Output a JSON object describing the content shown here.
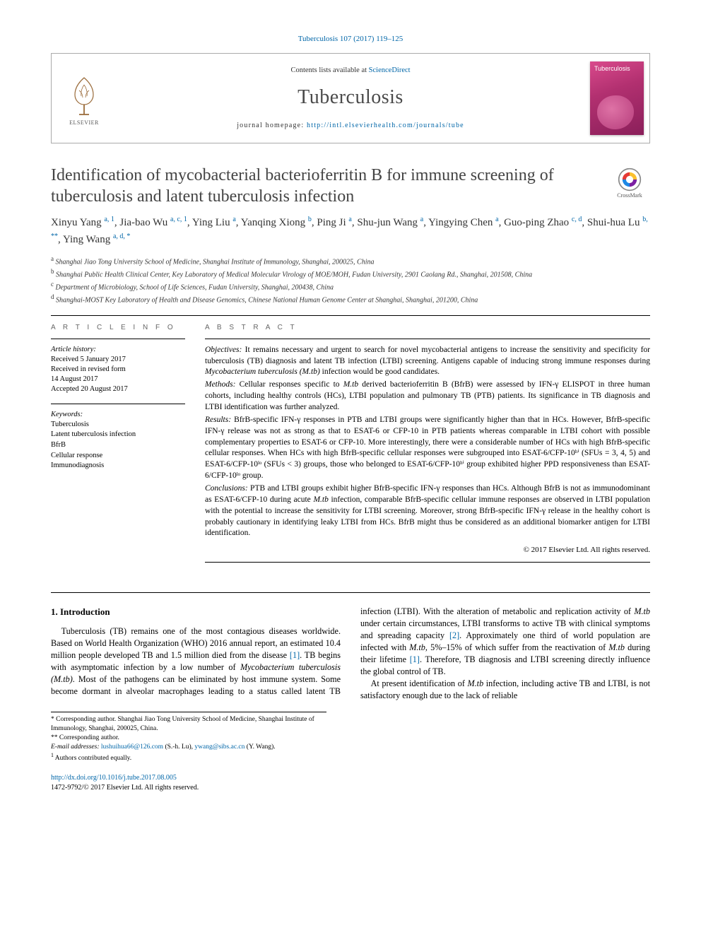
{
  "citation_line": "Tuberculosis 107 (2017) 119–125",
  "header": {
    "contents_prefix": "Contents lists available at ",
    "contents_link": "ScienceDirect",
    "journal": "Tuberculosis",
    "homepage_prefix": "journal homepage: ",
    "homepage_url": "http://intl.elsevierhealth.com/journals/tube",
    "publisher_label": "ELSEVIER",
    "cover_title": "Tuberculosis"
  },
  "crossmark_label": "CrossMark",
  "title": "Identification of mycobacterial bacterioferritin B for immune screening of tuberculosis and latent tuberculosis infection",
  "authors_html": "Xinyu Yang <sup>a, 1</sup>, Jia-bao Wu <sup>a, c, 1</sup>, Ying Liu <sup>a</sup>, Yanqing Xiong <sup>b</sup>, Ping Ji <sup>a</sup>, Shu-jun Wang <sup>a</sup>, Yingying Chen <sup>a</sup>, Guo-ping Zhao <sup>c, d</sup>, Shui-hua Lu <sup>b, **</sup>, Ying Wang <sup>a, d, *</sup>",
  "affiliations": [
    {
      "key": "a",
      "text": "Shanghai Jiao Tong University School of Medicine, Shanghai Institute of Immunology, Shanghai, 200025, China"
    },
    {
      "key": "b",
      "text": "Shanghai Public Health Clinical Center, Key Laboratory of Medical Molecular Virology of MOE/MOH, Fudan University, 2901 Caolang Rd., Shanghai, 201508, China"
    },
    {
      "key": "c",
      "text": "Department of Microbiology, School of Life Sciences, Fudan University, Shanghai, 200438, China"
    },
    {
      "key": "d",
      "text": "Shanghai-MOST Key Laboratory of Health and Disease Genomics, Chinese National Human Genome Center at Shanghai, Shanghai, 201200, China"
    }
  ],
  "info_head": "A R T I C L E    I N F O",
  "abstract_head": "A B S T R A C T",
  "history": {
    "label": "Article history:",
    "received": "Received 5 January 2017",
    "revised1": "Received in revised form",
    "revised2": "14 August 2017",
    "accepted": "Accepted 20 August 2017"
  },
  "keywords_label": "Keywords:",
  "keywords": [
    "Tuberculosis",
    "Latent tuberculosis infection",
    "BfrB",
    "Cellular response",
    "Immunodiagnosis"
  ],
  "abstract": {
    "objectives_label": "Objectives:",
    "objectives": " It remains necessary and urgent to search for novel mycobacterial antigens to increase the sensitivity and specificity for tuberculosis (TB) diagnosis and latent TB infection (LTBI) screening. Antigens capable of inducing strong immune responses during ",
    "objectives_ital": "Mycobacterium tuberculosis (M.tb)",
    "objectives_tail": " infection would be good candidates.",
    "methods_label": "Methods:",
    "methods": " Cellular responses specific to ",
    "methods_ital": "M.tb",
    "methods_mid": " derived bacterioferritin B (BfrB) were assessed by IFN-γ ELISPOT in three human cohorts, including healthy controls (HCs), LTBI population and pulmonary TB (PTB) patients. Its significance in TB diagnosis and LTBI identification was further analyzed.",
    "results_label": "Results:",
    "results": " BfrB-specific IFN-γ responses in PTB and LTBI groups were significantly higher than that in HCs. However, BfrB-specific IFN-γ release was not as strong as that to ESAT-6 or CFP-10 in PTB patients whereas comparable in LTBI cohort with possible complementary properties to ESAT-6 or CFP-10. More interestingly, there were a considerable number of HCs with high BfrB-specific cellular responses. When HCs with high BfrB-specific cellular responses were subgrouped into ESAT-6/CFP-10ʰⁱ (SFUs = 3, 4, 5) and ESAT-6/CFP-10ˡᵒ (SFUs < 3) groups, those who belonged to ESAT-6/CFP-10ʰⁱ group exhibited higher PPD responsiveness than ESAT-6/CFP-10ˡᵒ group.",
    "conclusions_label": "Conclusions:",
    "conclusions": " PTB and LTBI groups exhibit higher BfrB-specific IFN-γ responses than HCs. Although BfrB is not as immunodominant as ESAT-6/CFP-10 during acute ",
    "conclusions_ital": "M.tb",
    "conclusions_tail": " infection, comparable BfrB-specific cellular immune responses are observed in LTBI population with the potential to increase the sensitivity for LTBI screening. Moreover, strong BfrB-specific IFN-γ release in the healthy cohort is probably cautionary in identifying leaky LTBI from HCs. BfrB might thus be considered as an additional biomarker antigen for LTBI identification."
  },
  "copyright": "© 2017 Elsevier Ltd. All rights reserved.",
  "section1_head": "1.  Introduction",
  "intro_p1_a": "Tuberculosis (TB) remains one of the most contagious diseases worldwide. Based on World Health Organization (WHO) 2016 annual report, an estimated 10.4 million people developed TB and 1.5 million died from the disease ",
  "intro_cite1": "[1]",
  "intro_p1_b": ". TB begins with asymptomatic",
  "intro_p2_a": "infection by a low number of ",
  "intro_p2_ital1": "Mycobacterium tuberculosis (M.tb)",
  "intro_p2_b": ". Most of the pathogens can be eliminated by host immune system. Some become dormant in alveolar macrophages leading to a status called latent TB infection (LTBI). With the alteration of metabolic and replication activity of ",
  "intro_p2_ital2": "M.tb",
  "intro_p2_c": " under certain circumstances, LTBI transforms to active TB with clinical symptoms and spreading capacity ",
  "intro_cite2": "[2]",
  "intro_p2_d": ". Approximately one third of world population are infected with ",
  "intro_p2_ital3": "M.tb",
  "intro_p2_e": ", 5%–15% of which suffer from the reactivation of ",
  "intro_p2_ital4": "M.tb",
  "intro_p2_f": " during their lifetime ",
  "intro_cite3": "[1]",
  "intro_p2_g": ". Therefore, TB diagnosis and LTBI screening directly influence the global control of TB.",
  "intro_p3_a": "At present identification of ",
  "intro_p3_ital": "M.tb",
  "intro_p3_b": " infection, including active TB and LTBI, is not satisfactory enough due to the lack of reliable",
  "footnotes": {
    "corr1_mark": "*",
    "corr1": " Corresponding author. Shanghai Jiao Tong University School of Medicine, Shanghai Institute of Immunology, Shanghai, 200025, China.",
    "corr2_mark": "**",
    "corr2": " Corresponding author.",
    "email_label": "E-mail addresses: ",
    "email1": "lushuihua66@126.com",
    "email1_who": " (S.-h. Lu), ",
    "email2": "ywang@sibs.ac.cn",
    "email2_who": " (Y. Wang).",
    "equal_mark": "1",
    "equal": " Authors contributed equally."
  },
  "doi_url": "http://dx.doi.org/10.1016/j.tube.2017.08.005",
  "issn_line": "1472-9792/© 2017 Elsevier Ltd. All rights reserved."
}
